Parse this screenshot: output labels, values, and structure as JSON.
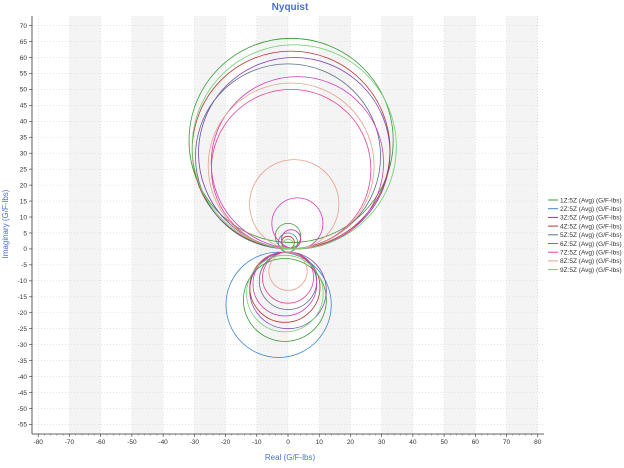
{
  "chart_data": {
    "type": "line",
    "title": "Nyquist",
    "xlabel": "Real (G/F-lbs)",
    "ylabel": "Imaginary (G/F-lbs)",
    "xlim": [
      -82,
      82
    ],
    "ylim": [
      -58,
      73
    ],
    "xticks": [
      -80,
      -70,
      -60,
      -50,
      -40,
      -30,
      -20,
      -10,
      0,
      10,
      20,
      30,
      40,
      50,
      60,
      70,
      80
    ],
    "yticks": [
      70,
      65,
      60,
      55,
      50,
      45,
      40,
      35,
      30,
      25,
      20,
      15,
      10,
      5,
      0,
      -5,
      -10,
      -15,
      -20,
      -25,
      -30,
      -35,
      -40,
      -45,
      -50,
      -55
    ],
    "grid": true,
    "legend_position": "right",
    "series": [
      {
        "name": "1Z:5Z (Avg) (G/F-lbs)",
        "color": "#3a9a3a",
        "loops": [
          {
            "cx": 1,
            "cy": 34,
            "r": 32
          },
          {
            "cx": -1,
            "cy": -16,
            "r": 13
          },
          {
            "cx": 0,
            "cy": 4,
            "r": 4
          }
        ]
      },
      {
        "name": "2Z:5Z (Avg) (G/F-lbs)",
        "color": "#3b86c9",
        "loops": [
          {
            "cx": -3,
            "cy": -17.5,
            "r": 16.5
          },
          {
            "cx": 0,
            "cy": 2,
            "r": 3
          }
        ]
      },
      {
        "name": "3Z:5Z (Avg) (G/F-lbs)",
        "color": "#7b3fb5",
        "loops": [
          {
            "cx": 2,
            "cy": 30,
            "r": 30
          },
          {
            "cx": 0,
            "cy": -13,
            "r": 12
          },
          {
            "cx": 1,
            "cy": 3,
            "r": 3
          }
        ]
      },
      {
        "name": "4Z:5Z (Avg) (G/F-lbs)",
        "color": "#b33a2c",
        "loops": [
          {
            "cx": 1,
            "cy": 31,
            "r": 31
          },
          {
            "cx": -1,
            "cy": -12,
            "r": 11
          },
          {
            "cx": 0,
            "cy": 2,
            "r": 2
          }
        ]
      },
      {
        "name": "5Z:5Z (Avg) (G/F-lbs)",
        "color": "#5a6e86",
        "loops": [
          {
            "cx": 0,
            "cy": 29,
            "r": 29
          },
          {
            "cx": 0,
            "cy": -10,
            "r": 9
          }
        ]
      },
      {
        "name": "6Z:5Z (Avg) (G/F-lbs)",
        "color": "#cc3fbd",
        "loops": [
          {
            "cx": 3,
            "cy": 27,
            "r": 27
          },
          {
            "cx": 3,
            "cy": 8,
            "r": 8
          },
          {
            "cx": -1,
            "cy": -11,
            "r": 10
          }
        ]
      },
      {
        "name": "7Z:5Z (Avg) (G/F-lbs)",
        "color": "#e8428f",
        "loops": [
          {
            "cx": 1,
            "cy": 25,
            "r": 25
          },
          {
            "cx": 0,
            "cy": -9,
            "r": 8
          },
          {
            "cx": 1,
            "cy": 3,
            "r": 3
          }
        ]
      },
      {
        "name": "8Z:5Z (Avg) (G/F-lbs)",
        "color": "#e8a088",
        "loops": [
          {
            "cx": 1,
            "cy": 26,
            "r": 26
          },
          {
            "cx": 2,
            "cy": 14,
            "r": 14
          },
          {
            "cx": 0,
            "cy": -7,
            "r": 6
          }
        ]
      },
      {
        "name": "9Z:5Z (Avg) (G/F-lbs)",
        "color": "#6fd06f",
        "loops": [
          {
            "cx": 2,
            "cy": 32,
            "r": 32
          },
          {
            "cx": -1,
            "cy": -14,
            "r": 12
          },
          {
            "cx": 0,
            "cy": 1,
            "r": 2
          }
        ]
      }
    ]
  }
}
